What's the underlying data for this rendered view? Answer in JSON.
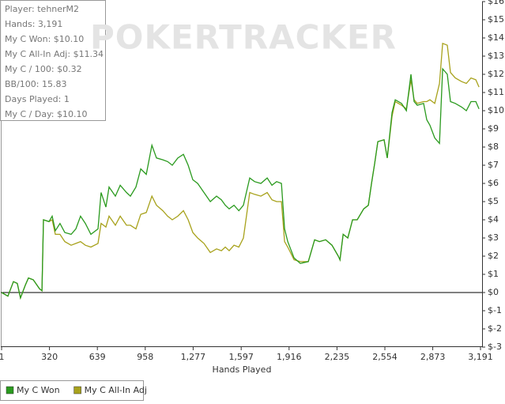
{
  "chart_data": {
    "type": "line",
    "watermark": "POKERTRACKER",
    "x_label": "Hands Played",
    "stats": [
      "Player: tehnerM2",
      "Hands: 3,191",
      "My C Won: $10.10",
      "My C All-In Adj: $11.34",
      "My C / 100: $0.32",
      "BB/100: 15.83",
      "Days Played: 1",
      "My C / Day: $10.10"
    ],
    "legend": "bottom-left",
    "grid": false,
    "xlim": [
      1,
      3191
    ],
    "xticks": [
      1,
      320,
      639,
      958,
      {
        "value": 1277,
        "label": "1,277"
      },
      {
        "value": 1597,
        "label": "1,597"
      },
      {
        "value": 1916,
        "label": "1,916"
      },
      {
        "value": 2235,
        "label": "2,235"
      },
      {
        "value": 2554,
        "label": "2,554"
      },
      {
        "value": 2873,
        "label": "2,873"
      },
      {
        "value": 3191,
        "label": "3,191"
      }
    ],
    "ylim": [
      -3,
      16
    ],
    "yticks": [
      {
        "value": 16,
        "label": "$16"
      },
      {
        "value": 15,
        "label": "$15"
      },
      {
        "value": 14,
        "label": "$14"
      },
      {
        "value": 13,
        "label": "$13"
      },
      {
        "value": 12,
        "label": "$12"
      },
      {
        "value": 11,
        "label": "$11"
      },
      {
        "value": 10,
        "label": "$10"
      },
      {
        "value": 9,
        "label": "$9"
      },
      {
        "value": 8,
        "label": "$8"
      },
      {
        "value": 7,
        "label": "$7"
      },
      {
        "value": 6,
        "label": "$6"
      },
      {
        "value": 5,
        "label": "$5"
      },
      {
        "value": 4,
        "label": "$4"
      },
      {
        "value": 3,
        "label": "$3"
      },
      {
        "value": 2,
        "label": "$2"
      },
      {
        "value": 1,
        "label": "$1"
      },
      {
        "value": 0,
        "label": "$0"
      },
      {
        "value": -1,
        "label": "$-1"
      },
      {
        "value": -2,
        "label": "$-2"
      },
      {
        "value": -3,
        "label": "$-3"
      }
    ],
    "x": [
      1,
      43,
      80,
      106,
      127,
      159,
      180,
      212,
      254,
      270,
      280,
      317,
      338,
      359,
      390,
      422,
      464,
      496,
      527,
      559,
      596,
      643,
      664,
      696,
      717,
      759,
      791,
      833,
      859,
      896,
      928,
      965,
      1002,
      1033,
      1075,
      1107,
      1138,
      1175,
      1212,
      1244,
      1275,
      1307,
      1349,
      1391,
      1433,
      1465,
      1491,
      1517,
      1549,
      1581,
      1612,
      1654,
      1686,
      1728,
      1770,
      1802,
      1833,
      1865,
      1886,
      1907,
      1949,
      1991,
      2044,
      2086,
      2118,
      2160,
      2202,
      2244,
      2255,
      2276,
      2307,
      2339,
      2370,
      2413,
      2444,
      2465,
      2486,
      2507,
      2549,
      2570,
      2602,
      2623,
      2665,
      2697,
      2728,
      2749,
      2770,
      2812,
      2833,
      2854,
      2886,
      2918,
      2939,
      2970,
      2991,
      3023,
      3065,
      3097,
      3128,
      3160,
      3181
    ],
    "series": [
      {
        "name": "My C All-In Adj",
        "color": "#a8a21c",
        "values": [
          0,
          -0.2,
          0.6,
          0.5,
          -0.3,
          0.4,
          0.8,
          0.7,
          0.2,
          0.1,
          4.0,
          3.9,
          4.0,
          3.2,
          3.2,
          2.8,
          2.6,
          2.7,
          2.8,
          2.6,
          2.5,
          2.7,
          3.8,
          3.6,
          4.2,
          3.7,
          4.2,
          3.7,
          3.7,
          3.5,
          4.3,
          4.4,
          5.3,
          4.8,
          4.5,
          4.2,
          4.0,
          4.2,
          4.5,
          4.0,
          3.3,
          3.0,
          2.7,
          2.2,
          2.4,
          2.3,
          2.5,
          2.3,
          2.6,
          2.5,
          3.0,
          5.5,
          5.4,
          5.3,
          5.5,
          5.1,
          5.0,
          5.0,
          2.8,
          2.5,
          1.8,
          1.7,
          1.7,
          2.9,
          2.8,
          2.9,
          2.6,
          2.0,
          1.8,
          3.2,
          3.0,
          4.0,
          4.0,
          4.6,
          4.8,
          6.0,
          7.1,
          8.3,
          8.4,
          7.4,
          9.7,
          10.5,
          10.3,
          10.1,
          11.7,
          10.6,
          10.4,
          10.5,
          10.5,
          10.6,
          10.4,
          11.5,
          13.7,
          13.6,
          12.1,
          11.8,
          11.6,
          11.5,
          11.8,
          11.7,
          11.3
        ]
      },
      {
        "name": "My C Won",
        "color": "#2a9a1e",
        "values": [
          0,
          -0.2,
          0.6,
          0.5,
          -0.3,
          0.4,
          0.8,
          0.7,
          0.2,
          0.1,
          4.0,
          3.9,
          4.2,
          3.4,
          3.8,
          3.3,
          3.2,
          3.5,
          4.2,
          3.8,
          3.2,
          3.5,
          5.5,
          4.7,
          5.8,
          5.3,
          5.9,
          5.5,
          5.3,
          5.8,
          6.8,
          6.5,
          8.1,
          7.4,
          7.3,
          7.2,
          7.0,
          7.4,
          7.6,
          7.0,
          6.2,
          6.0,
          5.5,
          5.0,
          5.3,
          5.1,
          4.8,
          4.6,
          4.8,
          4.5,
          4.8,
          6.3,
          6.1,
          6.0,
          6.3,
          5.9,
          6.1,
          6.0,
          3.5,
          2.8,
          1.9,
          1.6,
          1.7,
          2.9,
          2.8,
          2.9,
          2.6,
          2.0,
          1.8,
          3.2,
          3.0,
          4.0,
          4.0,
          4.6,
          4.8,
          6.0,
          7.1,
          8.3,
          8.4,
          7.4,
          9.9,
          10.6,
          10.4,
          10.0,
          12.0,
          10.5,
          10.3,
          10.4,
          9.5,
          9.2,
          8.5,
          8.2,
          12.3,
          12.0,
          10.5,
          10.4,
          10.2,
          10.0,
          10.5,
          10.5,
          10.1
        ]
      }
    ]
  }
}
